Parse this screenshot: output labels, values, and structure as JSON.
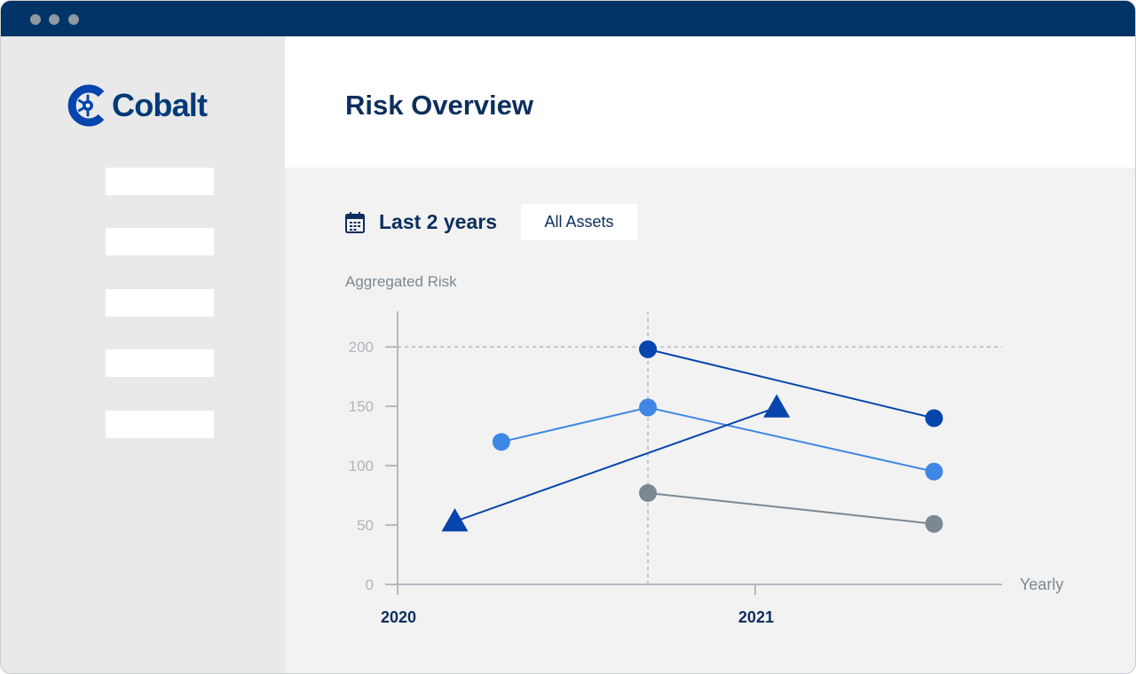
{
  "app": {
    "brand": "Cobalt",
    "title": "Risk Overview",
    "colors": {
      "titlebar": "#003366",
      "brand": "#003a78",
      "sidebar": "#e9e9e9",
      "content": "#f2f2f2"
    }
  },
  "sidebar": {
    "items": [
      {
        "label": ""
      },
      {
        "label": ""
      },
      {
        "label": ""
      },
      {
        "label": ""
      },
      {
        "label": ""
      }
    ]
  },
  "filters": {
    "range_icon": "calendar-icon",
    "range_label": "Last 2 years",
    "assets_label": "All Assets"
  },
  "chart_data": {
    "type": "line",
    "ylabel": "Aggregated Risk",
    "xlabel": "Yearly",
    "ylim": [
      0,
      230
    ],
    "yticks": [
      0,
      50,
      100,
      150,
      200
    ],
    "xlim": [
      2020,
      2021.69
    ],
    "xticks": [
      {
        "value": 2020,
        "label": "2020"
      },
      {
        "value": 2021,
        "label": "2021"
      }
    ],
    "grid": {
      "y_reference": 200,
      "x_reference": 2020.7
    },
    "series": [
      {
        "color": "#0645ad",
        "marker": "circle",
        "points": [
          [
            2020.7,
            198
          ],
          [
            2021.5,
            140
          ]
        ]
      },
      {
        "color": "#3f87e5",
        "marker": "circle",
        "points": [
          [
            2020.29,
            120
          ],
          [
            2020.7,
            149
          ],
          [
            2021.5,
            95
          ]
        ]
      },
      {
        "color": "#7b8894",
        "marker": "circle",
        "points": [
          [
            2020.7,
            77
          ],
          [
            2021.5,
            51
          ]
        ]
      },
      {
        "color": "#0645ad",
        "marker": "triangle",
        "points": [
          [
            2020.16,
            53
          ],
          [
            2021.06,
            149
          ]
        ]
      }
    ]
  }
}
